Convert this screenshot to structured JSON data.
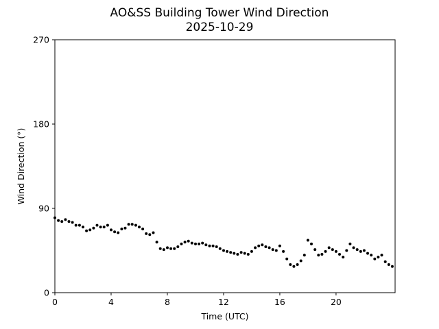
{
  "chart_data": {
    "type": "scatter",
    "title": "AO&SS Building Tower Wind Direction",
    "subtitle": "2025-10-29",
    "xlabel": "Time (UTC)",
    "ylabel": "Wind Direction (°)",
    "xlim": [
      0,
      24.2
    ],
    "ylim": [
      0,
      270
    ],
    "xticks": [
      0,
      4,
      8,
      12,
      16,
      20
    ],
    "xtick_labels": [
      "0",
      "4",
      "8",
      "12",
      "16",
      "20"
    ],
    "yticks": [
      0,
      90,
      180,
      270
    ],
    "ytick_labels": [
      "0",
      "90",
      "180",
      "270"
    ],
    "grid": false,
    "marker_color": "#000000",
    "series": [
      {
        "x": [
          0.0,
          0.25,
          0.5,
          0.75,
          1.0,
          1.25,
          1.5,
          1.75,
          2.0,
          2.25,
          2.5,
          2.75,
          3.0,
          3.25,
          3.5,
          3.75,
          4.0,
          4.25,
          4.5,
          4.75,
          5.0,
          5.25,
          5.5,
          5.75,
          6.0,
          6.25,
          6.5,
          6.75,
          7.0,
          7.25,
          7.5,
          7.75,
          8.0,
          8.25,
          8.5,
          8.75,
          9.0,
          9.25,
          9.5,
          9.75,
          10.0,
          10.25,
          10.5,
          10.75,
          11.0,
          11.25,
          11.5,
          11.75,
          12.0,
          12.25,
          12.5,
          12.75,
          13.0,
          13.25,
          13.5,
          13.75,
          14.0,
          14.25,
          14.5,
          14.75,
          15.0,
          15.25,
          15.5,
          15.75,
          16.0,
          16.25,
          16.5,
          16.75,
          17.0,
          17.25,
          17.5,
          17.75,
          18.0,
          18.25,
          18.5,
          18.75,
          19.0,
          19.25,
          19.5,
          19.75,
          20.0,
          20.25,
          20.5,
          20.75,
          21.0,
          21.25,
          21.5,
          21.75,
          22.0,
          22.25,
          22.5,
          22.75,
          23.0,
          23.25,
          23.5,
          23.75,
          24.0
        ],
        "y": [
          80,
          77,
          76,
          78,
          76,
          75,
          72,
          72,
          70,
          66,
          67,
          69,
          72,
          70,
          70,
          72,
          67,
          65,
          64,
          68,
          69,
          73,
          73,
          72,
          70,
          68,
          63,
          62,
          64,
          54,
          47,
          46,
          48,
          47,
          47,
          49,
          52,
          54,
          55,
          53,
          52,
          52,
          53,
          51,
          50,
          50,
          49,
          47,
          45,
          44,
          43,
          42,
          41,
          43,
          42,
          41,
          44,
          48,
          50,
          51,
          49,
          48,
          46,
          45,
          50,
          44,
          36,
          30,
          28,
          30,
          34,
          40,
          56,
          52,
          46,
          40,
          41,
          44,
          48,
          46,
          44,
          41,
          38,
          45,
          52,
          48,
          46,
          44,
          45,
          42,
          40,
          36,
          38,
          40,
          33,
          30,
          28
        ]
      }
    ]
  }
}
